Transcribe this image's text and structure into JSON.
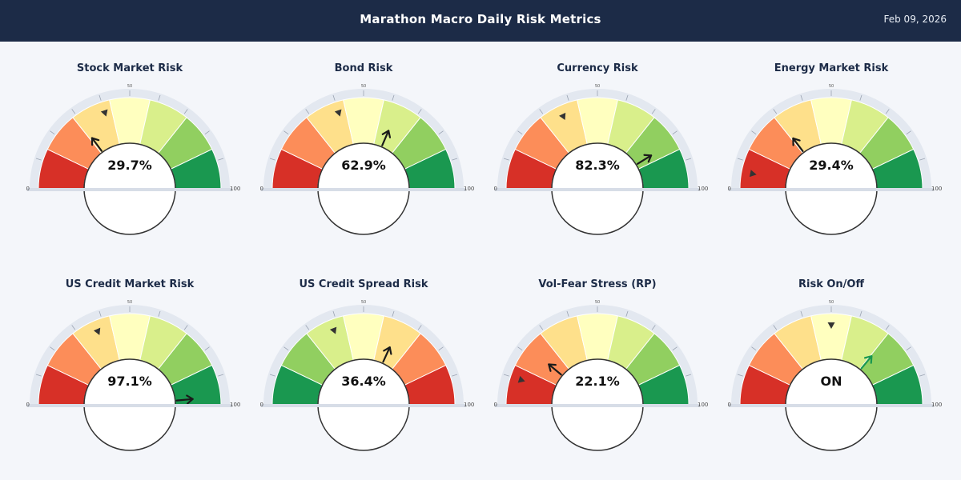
{
  "header": {
    "title": "Marathon Macro Daily Risk Metrics",
    "date": "Feb 09, 2026"
  },
  "colors": {
    "header_bg": "#1c2b47",
    "page_bg": "#f4f6fa",
    "zone_red": "#d73027",
    "zone_orange": "#fc8d59",
    "zone_light_orange": "#fee08b",
    "zone_yellow": "#ffffbf",
    "zone_light_green": "#d9ef8b",
    "zone_green": "#91cf60",
    "zone_dark_green": "#1a9850"
  },
  "chart_data": [
    {
      "type": "gauge",
      "title": "Stock Market Risk",
      "value_text": "29.7%",
      "value": 29.7,
      "prev_value": 40,
      "min": 0,
      "max": 100,
      "mid_label": "50",
      "min_label": "0",
      "max_label": "100",
      "direction": "red-to-green"
    },
    {
      "type": "gauge",
      "title": "Bond Risk",
      "value_text": "62.9%",
      "value": 62.9,
      "prev_value": 40,
      "min": 0,
      "max": 100,
      "mid_label": "50",
      "min_label": "0",
      "max_label": "100",
      "direction": "red-to-green"
    },
    {
      "type": "gauge",
      "title": "Currency Risk",
      "value_text": "82.3%",
      "value": 82.3,
      "prev_value": 36,
      "min": 0,
      "max": 100,
      "mid_label": "50",
      "min_label": "0",
      "max_label": "100",
      "direction": "red-to-green"
    },
    {
      "type": "gauge",
      "title": "Energy Market Risk",
      "value_text": "29.4%",
      "value": 29.4,
      "prev_value": 6,
      "min": 0,
      "max": 100,
      "mid_label": "50",
      "min_label": "0",
      "max_label": "100",
      "direction": "red-to-green"
    },
    {
      "type": "gauge",
      "title": "US Credit Market Risk",
      "value_text": "97.1%",
      "value": 97.1,
      "prev_value": 37,
      "min": 0,
      "max": 100,
      "mid_label": "50",
      "min_label": "0",
      "max_label": "100",
      "direction": "red-to-green"
    },
    {
      "type": "gauge",
      "title": "US Credit Spread Risk",
      "value_text": "36.4%",
      "value": 36.4,
      "prev_value": 38,
      "min": 0,
      "max": 100,
      "mid_label": "50",
      "min_label": "0",
      "max_label": "100",
      "direction": "green-to-red",
      "needle_value": 63.6
    },
    {
      "type": "gauge",
      "title": "Vol-Fear Stress (RP)",
      "value_text": "22.1%",
      "value": 22.1,
      "prev_value": 10,
      "min": 0,
      "max": 100,
      "mid_label": "50",
      "min_label": "0",
      "max_label": "100",
      "direction": "red-to-green"
    },
    {
      "type": "gauge",
      "title": "Risk On/Off",
      "value_text": "ON",
      "value": 72,
      "prev_value": 50,
      "min": 0,
      "max": 100,
      "mid_label": "50",
      "min_label": "0",
      "max_label": "100",
      "direction": "red-to-green",
      "needle_color": "#1a9850"
    }
  ]
}
